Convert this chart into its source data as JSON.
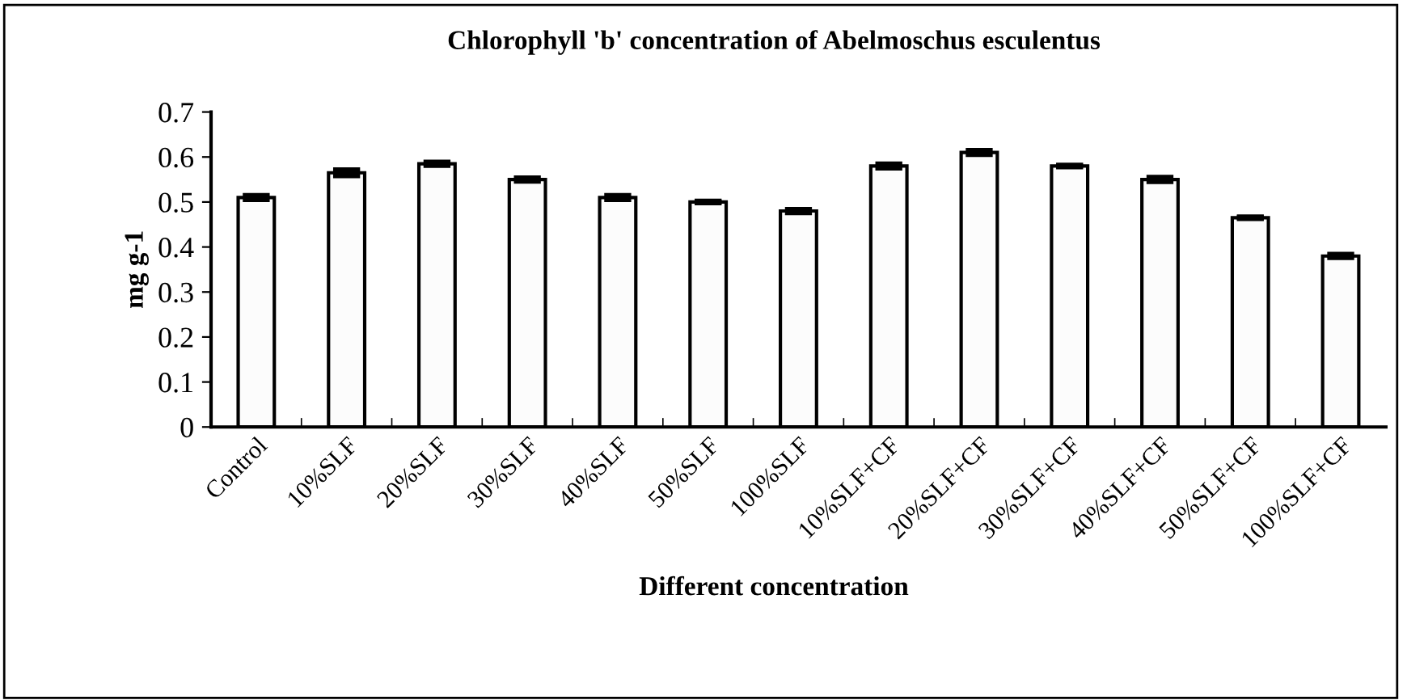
{
  "chart_data": {
    "type": "bar",
    "title": "Chlorophyll 'b' concentration of Abelmoschus esculentus",
    "xlabel": "Different concentration",
    "ylabel": "mg g-1",
    "categories": [
      "Control",
      "10%SLF",
      "20%SLF",
      "30%SLF",
      "40%SLF",
      "50%SLF",
      "100%SLF",
      "10%SLF+CF",
      "20%SLF+CF",
      "30%SLF+CF",
      "40%SLF+CF",
      "50%SLF+CF",
      "100%SLF+CF"
    ],
    "values": [
      0.51,
      0.565,
      0.585,
      0.55,
      0.51,
      0.5,
      0.48,
      0.58,
      0.61,
      0.58,
      0.55,
      0.465,
      0.38
    ],
    "errors": [
      0.004,
      0.006,
      0.003,
      0.003,
      0.004,
      0.001,
      0.003,
      0.004,
      0.004,
      0.001,
      0.004,
      0.001,
      0.003
    ],
    "color": "#fcfcfc",
    "ylim": [
      0,
      0.7
    ],
    "yticks": [
      0,
      0.1,
      0.2,
      0.3,
      0.4,
      0.5,
      0.6,
      0.7
    ],
    "grid": false,
    "legend": false
  }
}
